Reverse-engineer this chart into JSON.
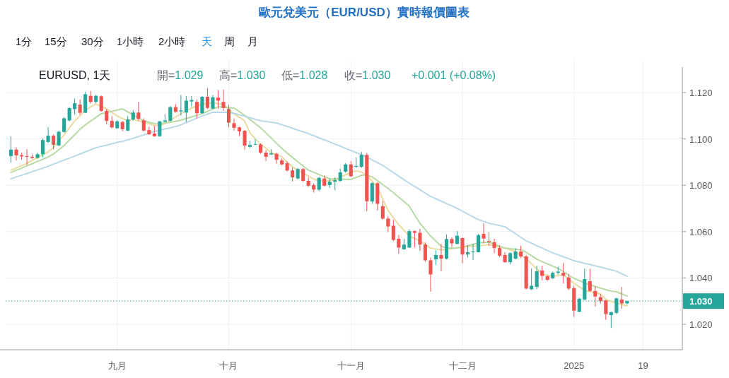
{
  "chart_data": {
    "type": "candlestick",
    "title": "歐元兌美元（EUR/USD）實時報價圖表",
    "annotations": [
      "1分",
      "15分",
      "30分",
      "1小時",
      "2小時",
      "天",
      "周",
      "月",
      "EURUSD, 1天",
      "開=1.029",
      "高=1.030",
      "低=1.028",
      "收=1.030",
      "+0.001 (+0.08%)"
    ],
    "categories": [
      null,
      null,
      null,
      null,
      null,
      null,
      null,
      null,
      null,
      null,
      null,
      null,
      null,
      null,
      null,
      null,
      null,
      null,
      null,
      null,
      "九月",
      null,
      null,
      null,
      null,
      null,
      null,
      null,
      null,
      null,
      null,
      null,
      null,
      null,
      null,
      null,
      null,
      null,
      null,
      null,
      null,
      "十月",
      null,
      null,
      null,
      null,
      null,
      null,
      null,
      null,
      null,
      null,
      null,
      null,
      null,
      null,
      null,
      null,
      null,
      null,
      null,
      null,
      null,
      null,
      "十一月",
      null,
      null,
      null,
      null,
      null,
      null,
      null,
      null,
      null,
      null,
      null,
      null,
      null,
      null,
      null,
      null,
      null,
      null,
      null,
      null,
      "十二月",
      null,
      null,
      null,
      null,
      null,
      null,
      null,
      null,
      null,
      null,
      null,
      null,
      null,
      null,
      null,
      null,
      null,
      null,
      null,
      null,
      "2025",
      null,
      null,
      null,
      null,
      null,
      null,
      null,
      null,
      null,
      null,
      null,
      null,
      "19",
      null
    ],
    "ohlc": [
      [
        1.0926,
        1.1012,
        1.0897,
        1.0954
      ],
      [
        1.0954,
        1.0964,
        1.0907,
        1.0929
      ],
      [
        1.093,
        1.0941,
        1.091,
        1.0925
      ],
      [
        1.0926,
        1.0956,
        1.0887,
        1.0923
      ],
      [
        1.0923,
        1.0934,
        1.0914,
        1.0918
      ],
      [
        1.0918,
        1.0942,
        1.0914,
        1.0934
      ],
      [
        1.0934,
        1.1002,
        1.0921,
        1.0995
      ],
      [
        1.0987,
        1.105,
        1.0982,
        1.1014
      ],
      [
        1.1014,
        1.1019,
        1.0956,
        1.0975
      ],
      [
        1.0972,
        1.1036,
        1.0969,
        1.1031
      ],
      [
        1.103,
        1.1094,
        1.1028,
        1.1089
      ],
      [
        1.108,
        1.1137,
        1.1076,
        1.1133
      ],
      [
        1.1129,
        1.1175,
        1.1105,
        1.1154
      ],
      [
        1.1148,
        1.117,
        1.1104,
        1.1113
      ],
      [
        1.1113,
        1.1203,
        1.1111,
        1.1193
      ],
      [
        1.1186,
        1.1207,
        1.1152,
        1.116
      ],
      [
        1.116,
        1.119,
        1.1154,
        1.1186
      ],
      [
        1.1184,
        1.1188,
        1.1117,
        1.1121
      ],
      [
        1.1121,
        1.1129,
        1.1063,
        1.1078
      ],
      [
        1.1078,
        1.1099,
        1.1045,
        1.105
      ],
      [
        1.1046,
        1.108,
        1.1044,
        1.1076
      ],
      [
        1.1073,
        1.1078,
        1.1033,
        1.1042
      ],
      [
        1.1036,
        1.1099,
        1.1033,
        1.1084
      ],
      [
        1.1084,
        1.1124,
        1.1078,
        1.1114
      ],
      [
        1.1114,
        1.116,
        1.1078,
        1.1087
      ],
      [
        1.108,
        1.1089,
        1.1032,
        1.1036
      ],
      [
        1.1038,
        1.1053,
        1.1017,
        1.102
      ],
      [
        1.1023,
        1.1056,
        1.1009,
        1.1012
      ],
      [
        1.1012,
        1.1078,
        1.1009,
        1.1076
      ],
      [
        1.1074,
        1.1107,
        1.1072,
        1.108
      ],
      [
        1.1078,
        1.1142,
        1.1076,
        1.1137
      ],
      [
        1.1137,
        1.115,
        1.1114,
        1.1117
      ],
      [
        1.1119,
        1.119,
        1.1101,
        1.1123
      ],
      [
        1.1114,
        1.1185,
        1.1073,
        1.1165
      ],
      [
        1.1162,
        1.1185,
        1.1141,
        1.1168
      ],
      [
        1.116,
        1.117,
        1.1089,
        1.1111
      ],
      [
        1.1111,
        1.1185,
        1.1109,
        1.1182
      ],
      [
        1.1182,
        1.1219,
        1.1129,
        1.1134
      ],
      [
        1.1131,
        1.119,
        1.1129,
        1.118
      ],
      [
        1.1178,
        1.1211,
        1.1131,
        1.1165
      ],
      [
        1.116,
        1.1213,
        1.1121,
        1.1134
      ],
      [
        1.1129,
        1.1148,
        1.105,
        1.107
      ],
      [
        1.1068,
        1.1089,
        1.1036,
        1.1048
      ],
      [
        1.105,
        1.1053,
        1.1012,
        1.1033
      ],
      [
        1.1035,
        1.1039,
        1.0954,
        1.0971
      ],
      [
        1.0966,
        1.0992,
        1.0961,
        1.0974
      ],
      [
        1.0976,
        1.1,
        1.0974,
        1.0978
      ],
      [
        1.0976,
        1.0981,
        1.0936,
        1.0941
      ],
      [
        1.0941,
        1.0951,
        1.0905,
        1.0923
      ],
      [
        1.0933,
        1.0956,
        1.0931,
        1.0938
      ],
      [
        1.0936,
        1.0941,
        1.0893,
        1.091
      ],
      [
        1.0907,
        1.0915,
        1.0885,
        1.089
      ],
      [
        1.0895,
        1.0903,
        1.0859,
        1.0864
      ],
      [
        1.0864,
        1.0877,
        1.0816,
        1.0834
      ],
      [
        1.0829,
        1.0875,
        1.0826,
        1.087
      ],
      [
        1.087,
        1.0875,
        1.0814,
        1.0819
      ],
      [
        1.0819,
        1.0834,
        1.0793,
        1.0798
      ],
      [
        1.0801,
        1.0808,
        1.0768,
        1.0781
      ],
      [
        1.0781,
        1.0836,
        1.0775,
        1.0832
      ],
      [
        1.0829,
        1.0842,
        1.0795,
        1.0798
      ],
      [
        1.0801,
        1.0829,
        1.0788,
        1.0815
      ],
      [
        1.0815,
        1.0834,
        1.0778,
        1.0822
      ],
      [
        1.0819,
        1.0872,
        1.0814,
        1.0856
      ],
      [
        1.0859,
        1.0895,
        1.0854,
        1.089
      ],
      [
        1.089,
        1.0903,
        1.0836,
        1.0839
      ],
      [
        1.088,
        1.092,
        1.0875,
        1.0883
      ],
      [
        1.088,
        1.0944,
        1.0875,
        1.0931
      ],
      [
        1.0931,
        1.0941,
        1.0688,
        1.0731
      ],
      [
        1.073,
        1.0812,
        1.072,
        1.0809
      ],
      [
        1.0809,
        1.0814,
        1.069,
        1.072
      ],
      [
        1.071,
        1.0732,
        1.0651,
        1.0656
      ],
      [
        1.0656,
        1.0666,
        1.0598,
        1.0622
      ],
      [
        1.0625,
        1.0651,
        1.0559,
        1.0564
      ],
      [
        1.0569,
        1.0585,
        1.0504,
        1.0531
      ],
      [
        1.0524,
        1.0569,
        1.0521,
        1.0544
      ],
      [
        1.0531,
        1.061,
        1.0529,
        1.0602
      ],
      [
        1.0602,
        1.0605,
        1.0531,
        1.0595
      ],
      [
        1.0595,
        1.0612,
        1.0517,
        1.0544
      ],
      [
        1.0544,
        1.0554,
        1.047,
        1.0476
      ],
      [
        1.0476,
        1.0488,
        1.0341,
        1.0415
      ],
      [
        1.048,
        1.0519,
        1.0456,
        1.0499
      ],
      [
        1.0499,
        1.0547,
        1.0429,
        1.0483
      ],
      [
        1.0483,
        1.0588,
        1.048,
        1.0568
      ],
      [
        1.0568,
        1.0575,
        1.0534,
        1.0549
      ],
      [
        1.0547,
        1.0602,
        1.0544,
        1.0582
      ],
      [
        1.0572,
        1.0575,
        1.0463,
        1.0501
      ],
      [
        1.0501,
        1.0542,
        1.0488,
        1.0511
      ],
      [
        1.0511,
        1.0547,
        1.0478,
        1.0514
      ],
      [
        1.0511,
        1.059,
        1.0509,
        1.0585
      ],
      [
        1.059,
        1.0636,
        1.0549,
        1.057
      ],
      [
        1.0559,
        1.0598,
        1.0539,
        1.0554
      ],
      [
        1.0554,
        1.057,
        1.0507,
        1.0529
      ],
      [
        1.0529,
        1.0541,
        1.049,
        1.0496
      ],
      [
        1.0499,
        1.0511,
        1.0466,
        1.0468
      ],
      [
        1.0468,
        1.0511,
        1.0458,
        1.0507
      ],
      [
        1.0483,
        1.0529,
        1.048,
        1.0514
      ],
      [
        1.0514,
        1.0539,
        1.0486,
        1.0493
      ],
      [
        1.0493,
        1.0498,
        1.0351,
        1.0354
      ],
      [
        1.0351,
        1.044,
        1.0348,
        1.0366
      ],
      [
        1.0361,
        1.0453,
        1.0351,
        1.0429
      ],
      [
        1.0432,
        1.0453,
        1.0389,
        1.0409
      ],
      [
        1.0407,
        1.0412,
        1.0387,
        1.0392
      ],
      [
        1.0399,
        1.0427,
        1.0395,
        1.0422
      ],
      [
        1.0422,
        1.0448,
        1.0415,
        1.0427
      ],
      [
        1.0422,
        1.0466,
        1.0376,
        1.0409
      ],
      [
        1.0402,
        1.0417,
        1.0348,
        1.0354
      ],
      [
        1.0356,
        1.0366,
        1.0232,
        1.0259
      ],
      [
        1.0254,
        1.0315,
        1.0252,
        1.031
      ],
      [
        1.0307,
        1.044,
        1.0303,
        1.0395
      ],
      [
        1.0386,
        1.044,
        1.0341,
        1.0344
      ],
      [
        1.0344,
        1.0364,
        1.0277,
        1.032
      ],
      [
        1.0317,
        1.033,
        1.029,
        1.03
      ],
      [
        1.0303,
        1.0305,
        1.0219,
        1.0244
      ],
      [
        1.0239,
        1.0254,
        1.0184,
        1.0252
      ],
      [
        1.0249,
        1.0315,
        1.0244,
        1.0312
      ],
      [
        1.0307,
        1.0361,
        1.0267,
        1.029
      ],
      [
        1.029,
        1.0302,
        1.0285,
        1.03
      ],
      null,
      null,
      null,
      null
    ],
    "colors": [
      "#26a69a",
      "#ef5350",
      "#ef5350",
      "#ef5350",
      "#ef5350",
      "#26a69a",
      "#26a69a",
      "#26a69a",
      "#ef5350",
      "#26a69a",
      "#26a69a",
      "#26a69a",
      "#26a69a",
      "#ef5350",
      "#26a69a",
      "#ef5350",
      "#26a69a",
      "#ef5350",
      "#ef5350",
      "#ef5350",
      "#26a69a",
      "#ef5350",
      "#26a69a",
      "#26a69a",
      "#ef5350",
      "#ef5350",
      "#ef5350",
      "#ef5350",
      "#26a69a",
      "#26a69a",
      "#26a69a",
      "#ef5350",
      "#26a69a",
      "#26a69a",
      "#26a69a",
      "#ef5350",
      "#26a69a",
      "#ef5350",
      "#26a69a",
      "#ef5350",
      "#ef5350",
      "#ef5350",
      "#ef5350",
      "#ef5350",
      "#ef5350",
      "#26a69a",
      "#26a69a",
      "#ef5350",
      "#ef5350",
      "#26a69a",
      "#ef5350",
      "#ef5350",
      "#ef5350",
      "#ef5350",
      "#26a69a",
      "#ef5350",
      "#ef5350",
      "#ef5350",
      "#26a69a",
      "#ef5350",
      "#26a69a",
      "#26a69a",
      "#26a69a",
      "#26a69a",
      "#ef5350",
      "#26a69a",
      "#26a69a",
      "#ef5350",
      "#26a69a",
      "#ef5350",
      "#ef5350",
      "#ef5350",
      "#ef5350",
      "#ef5350",
      "#26a69a",
      "#26a69a",
      "#ef5350",
      "#ef5350",
      "#ef5350",
      "#ef5350",
      "#26a69a",
      "#ef5350",
      "#26a69a",
      "#ef5350",
      "#26a69a",
      "#ef5350",
      "#26a69a",
      "#26a69a",
      "#26a69a",
      "#ef5350",
      "#ef5350",
      "#ef5350",
      "#ef5350",
      "#ef5350",
      "#26a69a",
      "#26a69a",
      "#ef5350",
      "#ef5350",
      "#26a69a",
      "#26a69a",
      "#ef5350",
      "#ef5350",
      "#26a69a",
      "#26a69a",
      "#ef5350",
      "#ef5350",
      "#ef5350",
      "#26a69a",
      "#26a69a",
      "#ef5350",
      "#ef5350",
      "#ef5350",
      "#ef5350",
      "#26a69a",
      "#26a69a",
      "#ef5350",
      "#26a69a",
      null,
      null,
      null,
      null
    ],
    "series": [
      {
        "type": "line",
        "color": "#ecdba0",
        "values": [
          1.0865,
          1.0875,
          1.0885,
          1.0895,
          1.0907,
          1.092,
          1.0932,
          1.0944,
          1.0962,
          1.099,
          1.1017,
          1.1048,
          1.1078,
          1.11,
          1.1123,
          1.1138,
          1.1151,
          1.114,
          1.113,
          1.1115,
          1.1099,
          1.1088,
          1.1078,
          1.1084,
          1.1078,
          1.1072,
          1.1065,
          1.1058,
          1.1057,
          1.1066,
          1.108,
          1.1095,
          1.1109,
          1.1121,
          1.1133,
          1.1143,
          1.115,
          1.1154,
          1.1157,
          1.1152,
          1.1148,
          1.1128,
          1.1109,
          1.1093,
          1.1078,
          1.1026,
          1.1,
          1.0977,
          1.0959,
          1.0941,
          1.0932,
          1.0923,
          1.09,
          1.088,
          1.0865,
          1.0852,
          1.084,
          1.0827,
          1.0819,
          1.0819,
          1.0819,
          1.0826,
          1.0834,
          1.0845,
          1.0855,
          1.0862,
          1.0857,
          1.0842,
          1.0818,
          1.079,
          1.074,
          1.0691,
          1.066,
          1.063,
          1.0605,
          1.0581,
          1.057,
          1.056,
          1.0545,
          1.0529,
          1.0525,
          1.0521,
          1.0523,
          1.0527,
          1.053,
          1.0533,
          1.0535,
          1.0537,
          1.0538,
          1.0541,
          1.0544,
          1.0539,
          1.0534,
          1.0529,
          1.0521,
          1.0514,
          1.0498,
          1.0483,
          1.0461,
          1.0439,
          1.0417,
          1.0412,
          1.0407,
          1.041,
          1.0413,
          1.0395,
          1.0377,
          1.0362,
          1.0346,
          1.0341,
          1.0336,
          1.0331,
          1.0307,
          1.0299,
          1.0291,
          1.0285,
          1.0279,
          null,
          null,
          null,
          null
        ]
      },
      {
        "type": "line",
        "color": "#b8dba5",
        "values": [
          1.0855,
          1.0865,
          1.0874,
          1.0884,
          1.0893,
          1.0903,
          1.0912,
          1.0922,
          1.0935,
          1.0953,
          1.0971,
          1.0995,
          1.1018,
          1.1042,
          1.1061,
          1.1077,
          1.1093,
          1.1109,
          1.1114,
          1.1119,
          1.1125,
          1.113,
          1.1117,
          1.1104,
          1.1091,
          1.1078,
          1.1072,
          1.1066,
          1.1065,
          1.1069,
          1.1072,
          1.1076,
          1.1081,
          1.1088,
          1.1095,
          1.1102,
          1.1109,
          1.1119,
          1.1129,
          1.1139,
          1.1137,
          1.1135,
          1.1133,
          1.1118,
          1.1102,
          1.1084,
          1.1066,
          1.1048,
          1.1026,
          1.1004,
          1.0981,
          1.0959,
          1.0939,
          1.092,
          1.0902,
          1.0883,
          1.0865,
          1.0856,
          1.0846,
          1.0837,
          1.0828,
          1.0827,
          1.0826,
          1.0826,
          1.0825,
          1.0834,
          1.0843,
          1.0843,
          1.0836,
          1.082,
          1.0803,
          1.0786,
          1.0768,
          1.0749,
          1.073,
          1.0709,
          1.0672,
          1.0636,
          1.0609,
          1.0581,
          1.0559,
          1.0537,
          1.0529,
          1.0529,
          1.0529,
          1.0533,
          1.0539,
          1.0545,
          1.0551,
          1.0553,
          1.0554,
          1.0546,
          1.0537,
          1.0529,
          1.0526,
          1.0524,
          1.0521,
          1.0511,
          1.0496,
          1.0481,
          1.047,
          1.0461,
          1.0451,
          1.0441,
          1.0427,
          1.0412,
          1.0398,
          1.0389,
          1.0379,
          1.037,
          1.0363,
          1.0356,
          1.0349,
          1.0343,
          1.034,
          1.0331,
          1.0322,
          null,
          null,
          null,
          null
        ]
      },
      {
        "type": "line",
        "color": "#b9d9e8",
        "values": [
          1.0828,
          1.0836,
          1.0843,
          1.0851,
          1.0859,
          1.0866,
          1.0874,
          1.0882,
          1.0891,
          1.09,
          1.0909,
          1.0917,
          1.0926,
          1.0935,
          1.0944,
          1.0953,
          1.0962,
          1.0968,
          1.0973,
          1.0979,
          1.0985,
          1.099,
          1.0996,
          1.1003,
          1.101,
          1.1018,
          1.1025,
          1.1032,
          1.1037,
          1.1043,
          1.1048,
          1.1054,
          1.1061,
          1.1071,
          1.108,
          1.109,
          1.1099,
          1.1107,
          1.1115,
          1.1115,
          1.1115,
          1.1115,
          1.111,
          1.1104,
          1.1099,
          1.1092,
          1.1085,
          1.1078,
          1.1075,
          1.1072,
          1.1069,
          1.1061,
          1.1054,
          1.1046,
          1.1038,
          1.1031,
          1.1023,
          1.1014,
          1.1005,
          1.0996,
          1.0987,
          1.0978,
          1.0969,
          1.0959,
          1.095,
          1.0941,
          1.0932,
          1.0921,
          1.0909,
          1.0898,
          1.0886,
          1.087,
          1.0855,
          1.0839,
          1.0824,
          1.0809,
          1.0795,
          1.0781,
          1.0766,
          1.0752,
          1.0742,
          1.0732,
          1.0721,
          1.0711,
          1.07,
          1.0688,
          1.0676,
          1.0664,
          1.0652,
          1.0644,
          1.0636,
          1.0631,
          1.0626,
          1.0621,
          1.0606,
          1.0591,
          1.0575,
          1.056,
          1.055,
          1.0539,
          1.0529,
          1.0518,
          1.0508,
          1.05,
          1.0491,
          1.0483,
          1.0474,
          1.0469,
          1.0463,
          1.0458,
          1.0452,
          1.0447,
          1.0441,
          1.0435,
          1.0429,
          1.0418,
          1.0407,
          null,
          null,
          null,
          null
        ]
      }
    ],
    "ylim": [
      1.009,
      1.131
    ],
    "yticks": [
      {
        "value": 1.02,
        "label": "1.020"
      },
      {
        "value": 1.04,
        "label": "1.040"
      },
      {
        "value": 1.06,
        "label": "1.060"
      },
      {
        "value": 1.08,
        "label": "1.080"
      },
      {
        "value": 1.1,
        "label": "1.100"
      },
      {
        "value": 1.12,
        "label": "1.120"
      }
    ],
    "ref_lines": [
      {
        "axis": "y",
        "value": 1.03,
        "label": "1.030",
        "color": "#26a69a",
        "line_style": "dotted"
      }
    ],
    "grid": true
  }
}
